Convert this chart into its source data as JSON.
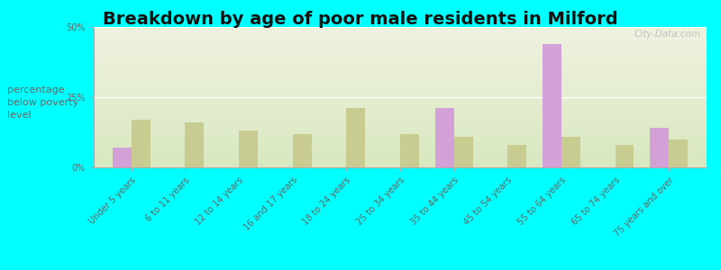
{
  "title": "Breakdown by age of poor male residents in Milford",
  "ylabel": "percentage\nbelow poverty\nlevel",
  "categories": [
    "Under 5 years",
    "6 to 11 years",
    "12 to 14 years",
    "16 and 17 years",
    "18 to 24 years",
    "25 to 34 years",
    "35 to 44 years",
    "45 to 54 years",
    "55 to 64 years",
    "65 to 74 years",
    "75 years and over"
  ],
  "milford_values": [
    7,
    0,
    0,
    0,
    0,
    0,
    21,
    0,
    44,
    0,
    14
  ],
  "kansas_values": [
    17,
    16,
    13,
    12,
    21,
    12,
    11,
    8,
    11,
    8,
    10
  ],
  "milford_color": "#d4a0d8",
  "kansas_color": "#c8cc90",
  "background_color": "#00ffff",
  "grad_top": "#f0f2e0",
  "grad_bottom": "#d8e8c0",
  "ylim": [
    0,
    50
  ],
  "yticks": [
    0,
    25,
    50
  ],
  "ytick_labels": [
    "0%",
    "25%",
    "50%"
  ],
  "bar_width": 0.35,
  "title_fontsize": 14,
  "ylabel_fontsize": 8,
  "tick_fontsize": 7,
  "watermark": "City-Data.com"
}
